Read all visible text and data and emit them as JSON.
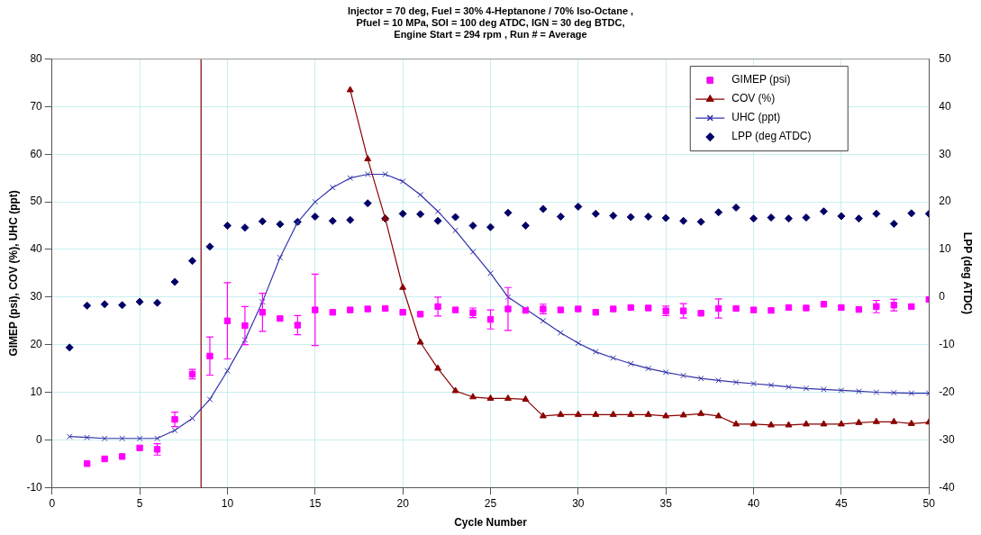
{
  "chart_data": {
    "type": "scatter",
    "title": "Injector = 70 deg, Fuel = 30% 4-Heptanone / 70% Iso-Octane ,\nPfuel = 10 MPa, SOI = 100 deg ATDC, IGN = 30 deg BTDC,\nEngine Start = 294 rpm , Run # = Average",
    "xlabel": "Cycle Number",
    "ylabel": "GIMEP (psi), COV (%), UHC (ppt)",
    "y2label": "LPP (deg ATDC)",
    "x": [
      1,
      2,
      3,
      4,
      5,
      6,
      7,
      8,
      9,
      10,
      11,
      12,
      13,
      14,
      15,
      16,
      17,
      18,
      19,
      20,
      21,
      22,
      23,
      24,
      25,
      26,
      27,
      28,
      29,
      30,
      31,
      32,
      33,
      34,
      35,
      36,
      37,
      38,
      39,
      40,
      41,
      42,
      43,
      44,
      45,
      46,
      47,
      48,
      49,
      50
    ],
    "xlim": [
      0,
      50
    ],
    "xticks": [
      0,
      5,
      10,
      15,
      20,
      25,
      30,
      35,
      40,
      45,
      50
    ],
    "ylim": [
      -10,
      80
    ],
    "yticks": [
      -10,
      0,
      10,
      20,
      30,
      40,
      50,
      60,
      70,
      80
    ],
    "y2lim": [
      -40,
      50
    ],
    "y2ticks": [
      -40,
      -30,
      -20,
      -10,
      0,
      10,
      20,
      30,
      40,
      50
    ],
    "grid": true,
    "legend": "top right",
    "series": [
      {
        "name": "GIMEP (psi)",
        "marker": "square",
        "color": "#ff00ff",
        "values": [
          null,
          -5,
          -4,
          -3.5,
          -1.7,
          -2,
          4.3,
          13.8,
          17.6,
          25,
          24,
          26.8,
          25.5,
          24.1,
          27.3,
          26.8,
          27.3,
          27.5,
          27.6,
          26.8,
          26.4,
          28,
          27.3,
          26.7,
          25.3,
          27.5,
          27.2,
          27.5,
          27.3,
          27.5,
          26.8,
          27.5,
          27.8,
          27.7,
          27.1,
          27.1,
          26.6,
          27.6,
          27.6,
          27.3,
          27.2,
          27.8,
          27.7,
          28.5,
          27.8,
          27.4,
          28,
          28.3,
          28,
          29.5
        ],
        "errors": [
          null,
          null,
          null,
          null,
          null,
          1.2,
          1.5,
          1,
          4,
          8,
          4,
          4,
          null,
          2,
          7.5,
          null,
          null,
          null,
          null,
          null,
          null,
          2,
          null,
          1,
          2,
          4.5,
          null,
          1,
          null,
          null,
          null,
          null,
          null,
          null,
          1,
          1.5,
          null,
          2,
          null,
          null,
          null,
          null,
          null,
          null,
          null,
          null,
          1.3,
          1.2,
          null,
          null
        ]
      },
      {
        "name": "COV (%)",
        "type": "line",
        "marker": "triangle",
        "color": "#8b0000",
        "values": [
          null,
          null,
          null,
          null,
          null,
          null,
          null,
          null,
          null,
          null,
          null,
          null,
          null,
          null,
          null,
          null,
          73.5,
          59,
          46.5,
          32,
          20.5,
          15,
          10.3,
          9,
          8.7,
          8.7,
          8.5,
          5,
          5.3,
          5.3,
          5.3,
          5.3,
          5.3,
          5.3,
          5,
          5.2,
          5.5,
          5,
          3.3,
          3.3,
          3.1,
          3.1,
          3.3,
          3.3,
          3.3,
          3.6,
          3.8,
          3.8,
          3.4,
          3.7
        ]
      },
      {
        "name": "UHC (ppt)",
        "type": "line",
        "marker": "cross",
        "color": "#3333aa",
        "values": [
          0.7,
          0.5,
          0.3,
          0.3,
          0.3,
          0.3,
          2,
          4.5,
          8.5,
          14.5,
          21,
          29,
          38.3,
          45.7,
          50,
          53,
          55,
          55.8,
          55.8,
          54.3,
          51.5,
          48,
          44,
          39.5,
          35,
          30,
          27.5,
          25,
          22.5,
          20.3,
          18.5,
          17.2,
          16,
          15,
          14.2,
          13.5,
          12.9,
          12.5,
          12.1,
          11.8,
          11.5,
          11.1,
          10.8,
          10.6,
          10.4,
          10.2,
          10,
          9.9,
          9.8,
          9.8
        ]
      },
      {
        "name": "LPP (deg ATDC)",
        "marker": "diamond",
        "axis": "y2",
        "color": "#000066",
        "values": [
          -10.6,
          -1.8,
          -1.5,
          -1.7,
          -1,
          -1.2,
          3.2,
          7.6,
          10.6,
          15,
          14.6,
          15.9,
          15.3,
          15.8,
          16.9,
          16,
          16.2,
          19.7,
          16.5,
          17.5,
          17.4,
          16,
          16.8,
          15,
          14.7,
          17.7,
          15,
          18.5,
          16.9,
          19,
          17.5,
          17.1,
          16.8,
          16.9,
          16.6,
          16,
          15.8,
          17.8,
          18.8,
          16.5,
          16.7,
          16.5,
          16.7,
          18,
          17,
          16.5,
          17.5,
          15.4,
          17.6,
          17.5
        ]
      }
    ],
    "ref_lines": [
      {
        "axis": "x",
        "value": 8.5,
        "color": "#993333"
      }
    ]
  }
}
